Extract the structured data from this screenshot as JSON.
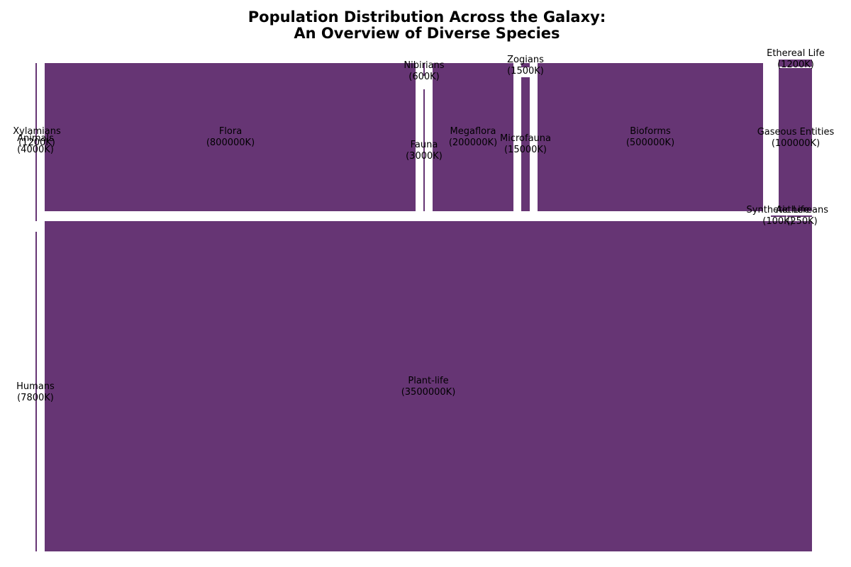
{
  "chart_data": {
    "type": "treemap",
    "title_lines": [
      "Population Distribution Across the Galaxy:",
      "An Overview of Diverse Species"
    ],
    "fill_color": "#663574",
    "value_unit": "K",
    "items": [
      {
        "label": "Xylamians",
        "value": 1200
      },
      {
        "label": "Animals",
        "value": 4000
      },
      {
        "label": "Flora",
        "value": 800000
      },
      {
        "label": "Nibirians",
        "value": 600
      },
      {
        "label": "Fauna",
        "value": 3000
      },
      {
        "label": "Megaflora",
        "value": 200000
      },
      {
        "label": "Zogians",
        "value": 1500
      },
      {
        "label": "Microfauna",
        "value": 15000
      },
      {
        "label": "Bioforms",
        "value": 500000
      },
      {
        "label": "Ethereal Life",
        "value": 1200
      },
      {
        "label": "Gaseous Entities",
        "value": 100000
      },
      {
        "label": "Synthetic Life",
        "value": 100
      },
      {
        "label": "Aethereans",
        "value": 250
      },
      {
        "label": "Humans",
        "value": 7800
      },
      {
        "label": "Plant-life",
        "value": 3500000
      }
    ]
  }
}
